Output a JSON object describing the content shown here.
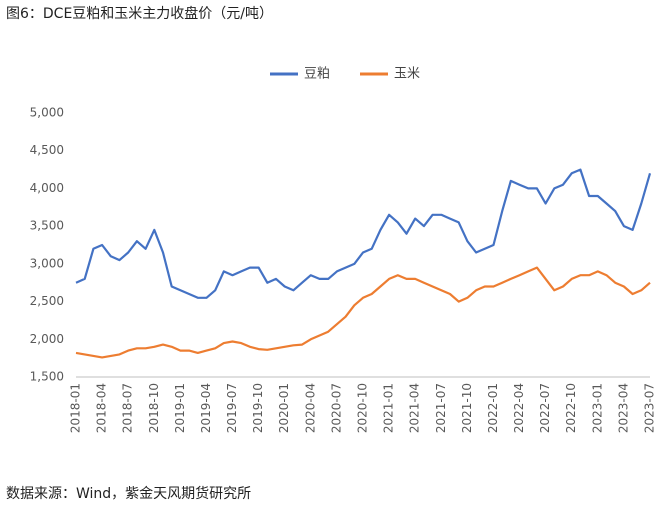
{
  "chart_data": {
    "type": "line",
    "title": "图6：DCE豆粕和玉米主力收盘价（元/吨）",
    "source": "数据来源：Wind，紫金天风期货研究所",
    "categories": [
      "2018-01",
      null,
      null,
      "2018-04",
      null,
      null,
      "2018-07",
      null,
      null,
      "2018-10",
      null,
      null,
      "2019-01",
      null,
      null,
      "2019-04",
      null,
      null,
      "2019-07",
      null,
      null,
      "2019-10",
      null,
      null,
      "2020-01",
      null,
      null,
      "2020-04",
      null,
      null,
      "2020-07",
      null,
      null,
      "2020-10",
      null,
      null,
      "2021-01",
      null,
      null,
      "2021-04",
      null,
      null,
      "2021-07",
      null,
      null,
      "2021-10",
      null,
      null,
      "2022-01",
      null,
      null,
      "2022-04",
      null,
      null,
      "2022-07",
      null,
      null,
      "2022-10",
      null,
      null,
      "2023-01",
      null,
      null,
      "2023-04",
      null,
      null,
      "2023-07"
    ],
    "series": [
      {
        "name": "豆粕",
        "color": "#4472c4",
        "values": [
          2750,
          2800,
          3200,
          3250,
          3100,
          3050,
          3150,
          3300,
          3200,
          3450,
          3150,
          2700,
          2650,
          2600,
          2550,
          2550,
          2650,
          2900,
          2850,
          2900,
          2950,
          2950,
          2750,
          2800,
          2700,
          2650,
          2750,
          2850,
          2800,
          2800,
          2900,
          2950,
          3000,
          3150,
          3200,
          3450,
          3650,
          3550,
          3400,
          3600,
          3500,
          3650,
          3650,
          3600,
          3550,
          3300,
          3150,
          3200,
          3250,
          3700,
          4100,
          4050,
          4000,
          4000,
          3800,
          4000,
          4050,
          4200,
          4250,
          3900,
          3900,
          3800,
          3700,
          3500,
          3450,
          3800,
          4200
        ]
      },
      {
        "name": "玉米",
        "color": "#ed7d31",
        "values": [
          1820,
          1800,
          1780,
          1760,
          1780,
          1800,
          1850,
          1880,
          1880,
          1900,
          1930,
          1900,
          1850,
          1850,
          1820,
          1850,
          1880,
          1950,
          1970,
          1950,
          1900,
          1870,
          1860,
          1880,
          1900,
          1920,
          1930,
          2000,
          2050,
          2100,
          2200,
          2300,
          2450,
          2550,
          2600,
          2700,
          2800,
          2850,
          2800,
          2800,
          2750,
          2700,
          2650,
          2600,
          2500,
          2550,
          2650,
          2700,
          2700,
          2750,
          2800,
          2850,
          2900,
          2950,
          2800,
          2650,
          2700,
          2800,
          2850,
          2850,
          2900,
          2850,
          2750,
          2700,
          2600,
          2650,
          2750
        ]
      }
    ],
    "ylim": [
      1500,
      5000
    ],
    "yticks": [
      {
        "value": 1500,
        "label": "1,500"
      },
      {
        "value": 2000,
        "label": "2,000"
      },
      {
        "value": 2500,
        "label": "2,500"
      },
      {
        "value": 3000,
        "label": "3,000"
      },
      {
        "value": 3500,
        "label": "3,500"
      },
      {
        "value": 4000,
        "label": "4,000"
      },
      {
        "value": 4500,
        "label": "4,500"
      },
      {
        "value": 5000,
        "label": "5,000"
      }
    ],
    "grid": false,
    "legend": "top"
  }
}
